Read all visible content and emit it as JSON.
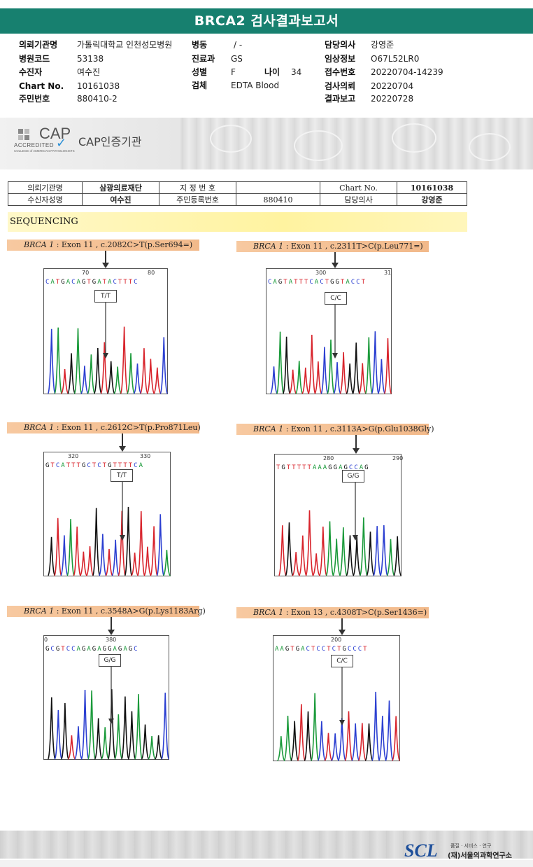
{
  "report": {
    "title": "BRCA2 검사결과보고서"
  },
  "patient": {
    "institution_label": "의뢰기관명",
    "institution": "가톨릭대학교 인천성모병원",
    "hospital_code_label": "병원코드",
    "hospital_code": "53138",
    "examinee_label": "수진자",
    "examinee": "여수진",
    "chart_no_label": "Chart No.",
    "chart_no": "10161038",
    "resident_no_label": "주민번호",
    "resident_no": "880410-2",
    "ward_label": "병동",
    "ward": "/ -",
    "department_label": "진료과",
    "department": "GS",
    "sex_label": "성별",
    "sex": "F",
    "age_label": "나이",
    "age": "34",
    "specimen_label": "검체",
    "specimen": "EDTA Blood",
    "doctor_label": "담당의사",
    "doctor": "강영준",
    "clinical_info_label": "임상정보",
    "clinical_info": "O67L52LR0",
    "receipt_no_label": "접수번호",
    "receipt_no": "20220704-14239",
    "test_request_label": "검사의뢰",
    "test_request": "20220704",
    "result_report_label": "결과보고",
    "result_report": "20220728"
  },
  "cap": {
    "logo": "CAP",
    "accredited": "ACCREDITED",
    "college": "COLLEGE of AMERICAN PATHOLOGISTS",
    "label": "CAP인증기관"
  },
  "specimen_table": {
    "r1c1": "의뢰기관명",
    "r1c2": "삼광의료재단",
    "r1c3": "지 정 번 호",
    "r1c4": "",
    "r1c5": "Chart No.",
    "r1c6": "10161038",
    "r2c1": "수신자성명",
    "r2c2": "여수진",
    "r2c3": "주민등록번호",
    "r2c4": "880410",
    "r2c5": "담당의사",
    "r2c6": "강영준"
  },
  "sequencing": {
    "title": "SEQUENCING"
  },
  "variants": [
    {
      "gene": "BRCA 1",
      "desc": " : Exon 11 , c.2082C>T(p.Ser694=)",
      "n1": "70",
      "n2": "80",
      "bases": "CATGACAGTGATACTTTC",
      "genotype": "T/T"
    },
    {
      "gene": "BRCA 1",
      "desc": " : Exon 11 , c.2311T>C(p.Leu771=)",
      "n1": "300",
      "n2": "31",
      "bases": "CAGTATTTCACTGGTACCT",
      "genotype": "C/C"
    },
    {
      "gene": "BRCA 1",
      "desc": " : Exon 11 , c.2612C>T(p.Pro871Leu)",
      "n1": "320",
      "n2": "330",
      "bases": "GTCATTTGCTCTGTTTTCA",
      "genotype": "T/T"
    },
    {
      "gene": "BRCA 1",
      "desc": " : Exon 11 , c.3113A>G(p.Glu1038Gly)",
      "n1": "280",
      "n2": "290",
      "bases": "TGTTTTTAAAGGAGCCAG",
      "genotype": "G/G"
    },
    {
      "gene": "BRCA 1",
      "desc": " : Exon 11 , c.3548A>G(p.Lys1183Arg)",
      "n1": "0",
      "n2": "380",
      "bases": "GCGTCCAGAGAGGAGAGC",
      "genotype": "G/G"
    },
    {
      "gene": "BRCA 1",
      "desc": " : Exon 13 , c.4308T>C(p.Ser1436=)",
      "n1": "200",
      "n2": "",
      "bases": "AAGTGACTCCTCTGCCCT",
      "genotype": "C/C"
    }
  ],
  "footer": {
    "logo": "SCL",
    "motto": "품질 · 서비스 · 연구",
    "org": "(재)서울의과학연구소"
  },
  "colors": {
    "title_bar": "#17806f",
    "A": "#1a9a3a",
    "C": "#2b3fd1",
    "G": "#111111",
    "T": "#d8242c"
  }
}
